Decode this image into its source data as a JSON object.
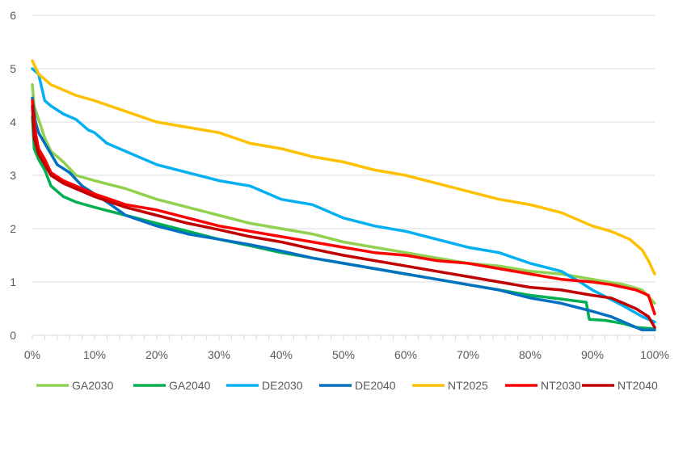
{
  "chart_data": {
    "type": "line",
    "x_unit": "%",
    "xlim": [
      0,
      100
    ],
    "ylim": [
      0,
      6
    ],
    "x_ticks": [
      "0%",
      "10%",
      "20%",
      "30%",
      "40%",
      "50%",
      "60%",
      "70%",
      "80%",
      "90%",
      "100%"
    ],
    "y_ticks": [
      "0",
      "1",
      "2",
      "3",
      "4",
      "5",
      "6"
    ],
    "grid": "horizontal",
    "legend_position": "bottom",
    "series": [
      {
        "name": "GA2030",
        "color": "#92d050",
        "x": [
          0,
          0.3,
          1,
          2,
          3,
          5,
          7,
          10,
          15,
          20,
          25,
          30,
          35,
          40,
          45,
          50,
          55,
          60,
          65,
          70,
          75,
          80,
          85,
          90,
          95,
          98,
          100
        ],
        "y": [
          4.7,
          4.3,
          4.05,
          3.7,
          3.45,
          3.25,
          3.0,
          2.9,
          2.75,
          2.55,
          2.4,
          2.25,
          2.1,
          2.0,
          1.9,
          1.75,
          1.65,
          1.55,
          1.45,
          1.35,
          1.3,
          1.2,
          1.15,
          1.05,
          0.95,
          0.85,
          0.6
        ]
      },
      {
        "name": "GA2040",
        "color": "#00b050",
        "x": [
          0,
          0.3,
          1,
          2,
          3,
          5,
          7,
          10,
          15,
          20,
          25,
          30,
          35,
          40,
          45,
          50,
          55,
          60,
          65,
          70,
          75,
          80,
          85,
          89,
          89.5,
          92,
          95,
          97,
          100
        ],
        "y": [
          4.1,
          3.5,
          3.3,
          3.1,
          2.8,
          2.6,
          2.5,
          2.4,
          2.25,
          2.1,
          1.95,
          1.8,
          1.68,
          1.55,
          1.45,
          1.35,
          1.25,
          1.15,
          1.05,
          0.95,
          0.85,
          0.75,
          0.68,
          0.62,
          0.3,
          0.28,
          0.22,
          0.15,
          0.12
        ]
      },
      {
        "name": "DE2030",
        "color": "#00b0f0",
        "x": [
          0,
          1,
          2,
          3,
          5,
          7,
          9,
          10,
          12,
          15,
          20,
          25,
          30,
          35,
          40,
          45,
          50,
          55,
          60,
          65,
          70,
          75,
          80,
          85,
          88,
          90,
          95,
          98,
          100
        ],
        "y": [
          5.0,
          4.9,
          4.4,
          4.3,
          4.15,
          4.05,
          3.85,
          3.8,
          3.6,
          3.45,
          3.2,
          3.05,
          2.9,
          2.8,
          2.55,
          2.45,
          2.2,
          2.05,
          1.95,
          1.8,
          1.65,
          1.55,
          1.35,
          1.2,
          1.0,
          0.85,
          0.55,
          0.35,
          0.25
        ]
      },
      {
        "name": "DE2040",
        "color": "#0070c0",
        "x": [
          0,
          0.5,
          1,
          2,
          4,
          6,
          8,
          10,
          12,
          15,
          20,
          25,
          30,
          35,
          40,
          45,
          50,
          55,
          60,
          65,
          70,
          75,
          80,
          85,
          90,
          93,
          95,
          97,
          98,
          100
        ],
        "y": [
          4.45,
          4.0,
          3.8,
          3.6,
          3.2,
          3.05,
          2.8,
          2.65,
          2.5,
          2.25,
          2.05,
          1.9,
          1.8,
          1.7,
          1.58,
          1.45,
          1.35,
          1.25,
          1.15,
          1.05,
          0.95,
          0.85,
          0.7,
          0.6,
          0.45,
          0.35,
          0.25,
          0.15,
          0.1,
          0.1
        ]
      },
      {
        "name": "NT2025",
        "color": "#ffc000",
        "x": [
          0,
          1,
          2,
          3,
          5,
          7,
          10,
          15,
          20,
          25,
          30,
          35,
          40,
          45,
          50,
          55,
          60,
          65,
          70,
          75,
          80,
          85,
          90,
          93,
          95,
          96,
          98,
          99,
          100
        ],
        "y": [
          5.15,
          4.9,
          4.8,
          4.7,
          4.6,
          4.5,
          4.4,
          4.2,
          4.0,
          3.9,
          3.8,
          3.6,
          3.5,
          3.35,
          3.25,
          3.1,
          3.0,
          2.85,
          2.7,
          2.55,
          2.45,
          2.3,
          2.05,
          1.95,
          1.85,
          1.8,
          1.6,
          1.4,
          1.15
        ]
      },
      {
        "name": "NT2030",
        "color": "#ff0000",
        "x": [
          0,
          0.5,
          1,
          2,
          3,
          5,
          7,
          10,
          15,
          20,
          25,
          30,
          35,
          40,
          45,
          50,
          55,
          60,
          65,
          70,
          75,
          80,
          85,
          90,
          93,
          95,
          97,
          99,
          100
        ],
        "y": [
          4.4,
          3.8,
          3.5,
          3.3,
          3.05,
          2.9,
          2.8,
          2.65,
          2.45,
          2.35,
          2.2,
          2.05,
          1.95,
          1.85,
          1.75,
          1.65,
          1.55,
          1.5,
          1.4,
          1.35,
          1.25,
          1.15,
          1.05,
          1.0,
          0.95,
          0.9,
          0.85,
          0.75,
          0.4
        ]
      },
      {
        "name": "NT2040",
        "color": "#c00000",
        "x": [
          0,
          0.3,
          1,
          2,
          3,
          5,
          7,
          10,
          15,
          20,
          25,
          30,
          35,
          40,
          45,
          50,
          55,
          60,
          65,
          70,
          75,
          80,
          85,
          90,
          93,
          95,
          97,
          99,
          100
        ],
        "y": [
          4.3,
          3.7,
          3.4,
          3.2,
          3.0,
          2.85,
          2.75,
          2.6,
          2.4,
          2.25,
          2.1,
          1.98,
          1.85,
          1.75,
          1.62,
          1.5,
          1.4,
          1.3,
          1.2,
          1.1,
          1.0,
          0.9,
          0.85,
          0.75,
          0.7,
          0.6,
          0.5,
          0.35,
          0.15
        ]
      }
    ]
  }
}
